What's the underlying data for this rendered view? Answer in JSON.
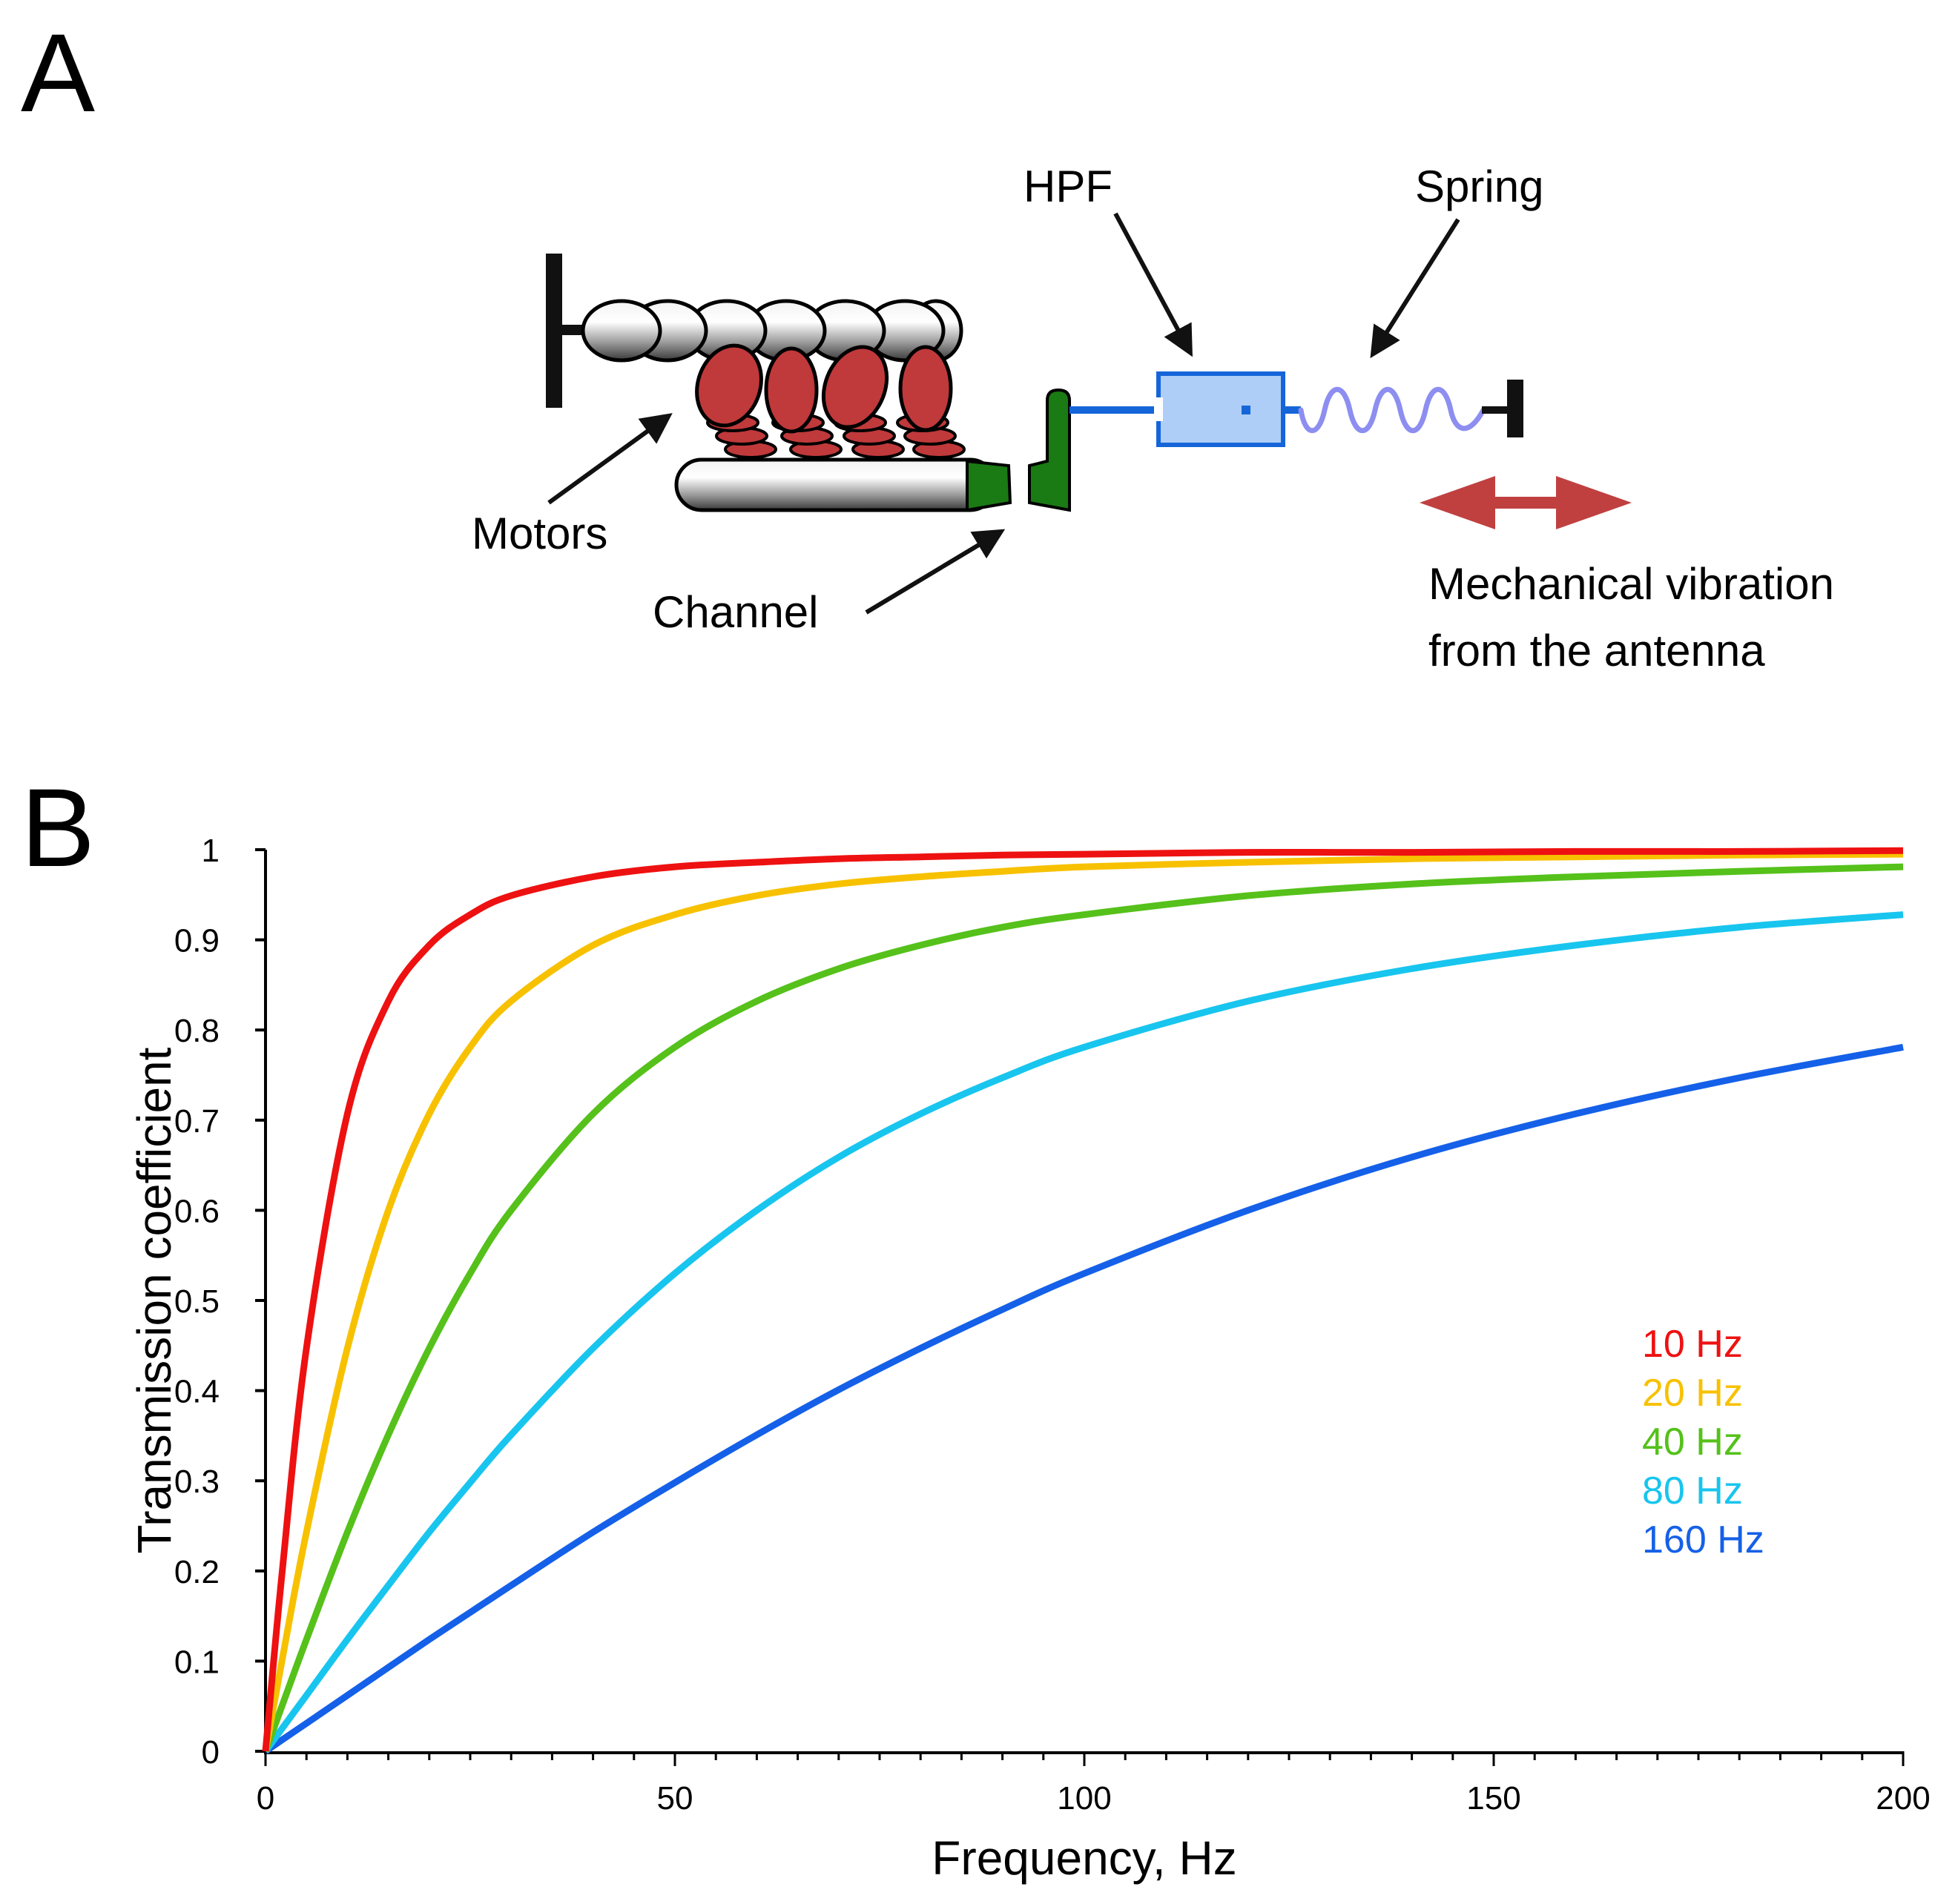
{
  "panel_a": {
    "letter": "A",
    "labels": {
      "motors": "Motors",
      "channel": "Channel",
      "hpf": "HPF",
      "spring": "Spring",
      "vibration_line1": "Mechanical vibration",
      "vibration_line2": "from the antenna"
    },
    "colors": {
      "actin": "#b8b8b8",
      "motor": "#c0393b",
      "channel": "#1a7a14",
      "hpf_fill": "#aecdf7",
      "hpf_stroke": "#1565d8",
      "spring": "#8d8ef0",
      "vibration_arrow": "#c04040"
    }
  },
  "panel_b": {
    "letter": "B",
    "chart_data": {
      "type": "line",
      "xlabel": "Frequency, Hz",
      "ylabel": "Transmission coefficient",
      "xlim": [
        0,
        200
      ],
      "ylim": [
        0,
        1
      ],
      "x_ticks": [
        "0",
        "50",
        "100",
        "150",
        "200"
      ],
      "y_ticks": [
        "0",
        "0.1",
        "0.2",
        "0.3",
        "0.4",
        "0.5",
        "0.6",
        "0.7",
        "0.8",
        "0.9",
        "1"
      ],
      "x_minor_step": 5,
      "grid": false,
      "legend_position": "lower-right",
      "x": [
        0,
        2,
        5,
        10,
        15,
        20,
        25,
        30,
        40,
        50,
        60,
        70,
        80,
        90,
        100,
        120,
        140,
        160,
        180,
        200
      ],
      "series": [
        {
          "name": "10 Hz",
          "color": "#ee1111",
          "values": [
            0,
            0.196,
            0.447,
            0.707,
            0.832,
            0.894,
            0.928,
            0.949,
            0.97,
            0.981,
            0.986,
            0.99,
            0.992,
            0.994,
            0.995,
            0.997,
            0.997,
            0.998,
            0.998,
            0.999
          ]
        },
        {
          "name": "20 Hz",
          "color": "#f7c100",
          "values": [
            0,
            0.1,
            0.243,
            0.447,
            0.6,
            0.707,
            0.781,
            0.832,
            0.894,
            0.928,
            0.949,
            0.962,
            0.97,
            0.976,
            0.981,
            0.986,
            0.99,
            0.992,
            0.994,
            0.995
          ]
        },
        {
          "name": "40 Hz",
          "color": "#55c11a",
          "values": [
            0,
            0.05,
            0.124,
            0.243,
            0.351,
            0.447,
            0.53,
            0.6,
            0.707,
            0.781,
            0.832,
            0.868,
            0.894,
            0.914,
            0.928,
            0.949,
            0.962,
            0.97,
            0.976,
            0.981
          ]
        },
        {
          "name": "80 Hz",
          "color": "#18c5ee",
          "values": [
            0,
            0.025,
            0.062,
            0.124,
            0.184,
            0.243,
            0.298,
            0.351,
            0.447,
            0.53,
            0.6,
            0.659,
            0.707,
            0.747,
            0.781,
            0.832,
            0.868,
            0.894,
            0.914,
            0.928
          ]
        },
        {
          "name": "160 Hz",
          "color": "#1560e8",
          "values": [
            0,
            0.0125,
            0.031,
            0.062,
            0.093,
            0.124,
            0.154,
            0.184,
            0.243,
            0.298,
            0.351,
            0.401,
            0.447,
            0.49,
            0.53,
            0.6,
            0.659,
            0.707,
            0.747,
            0.781
          ]
        }
      ]
    }
  }
}
